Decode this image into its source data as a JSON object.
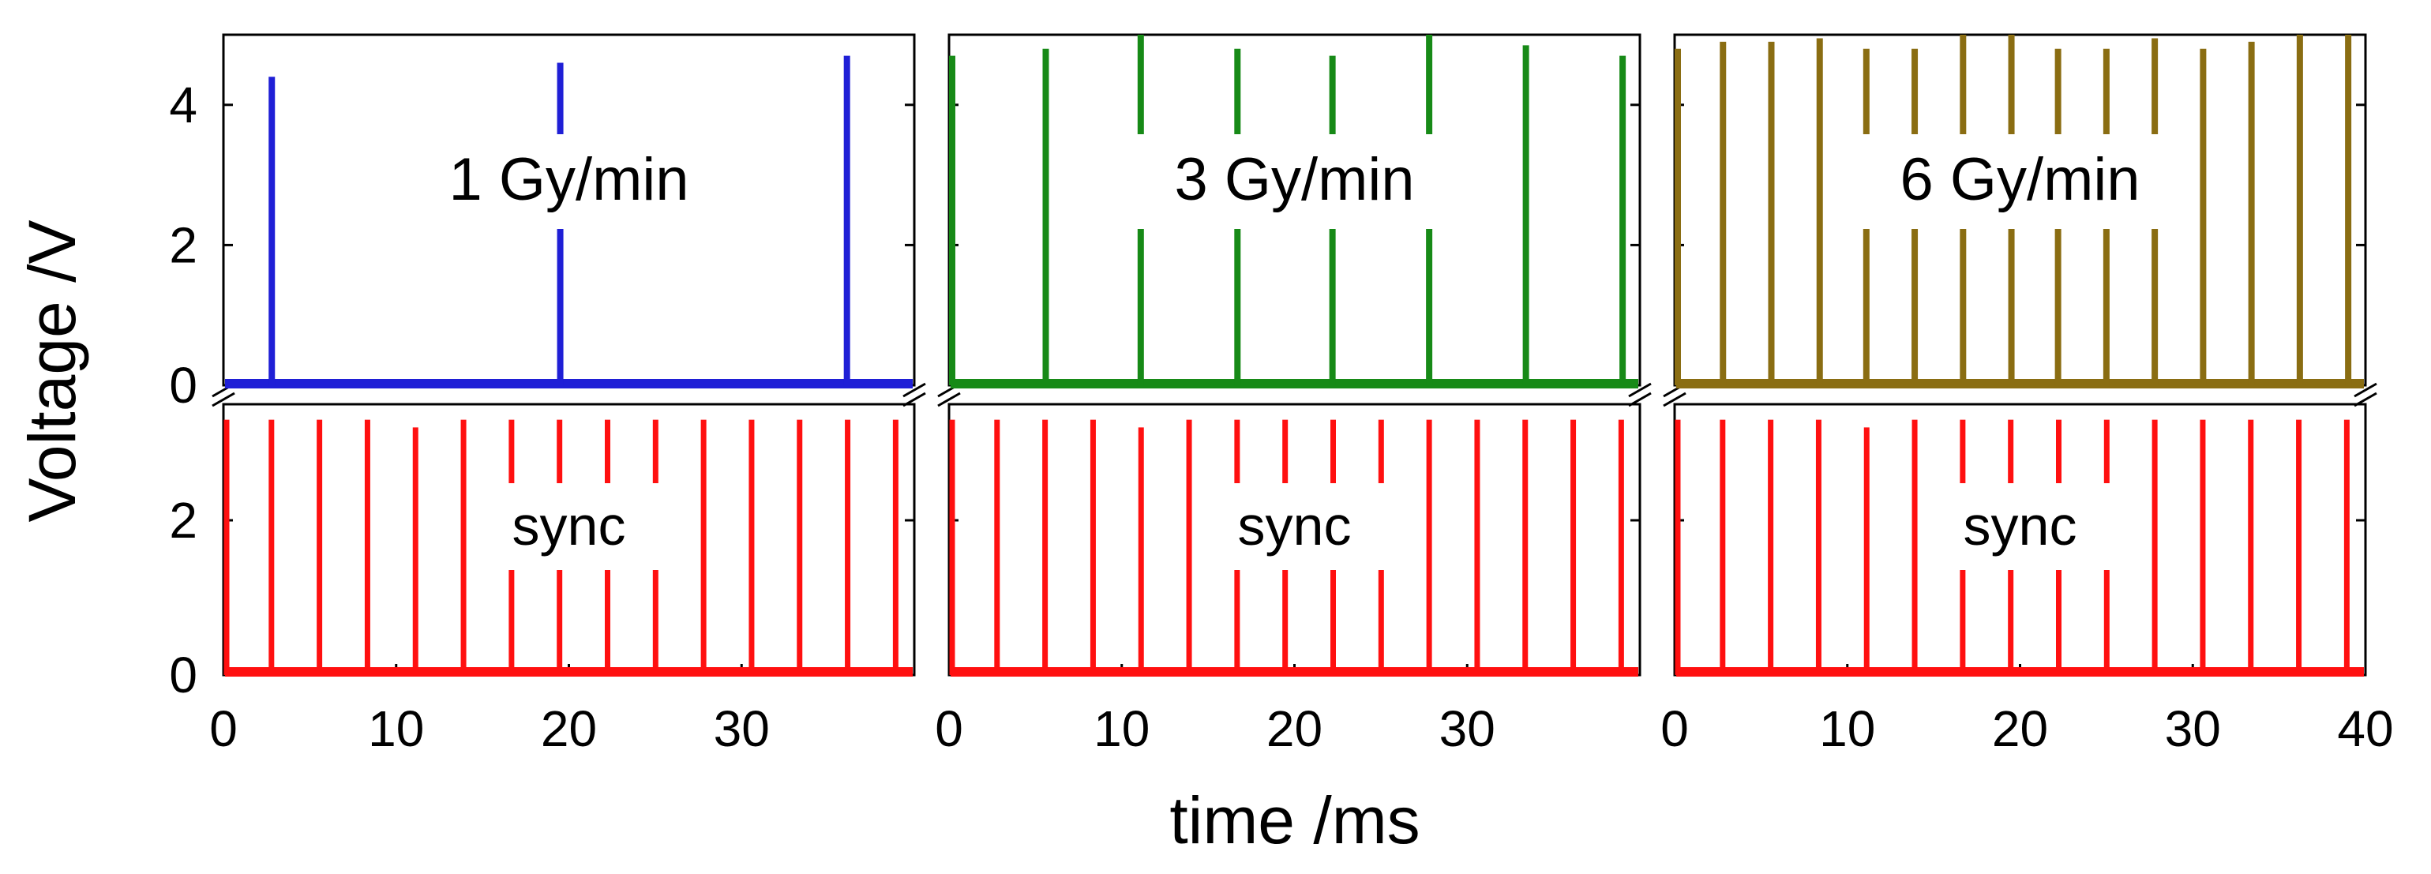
{
  "chart_data": {
    "type": "line",
    "ylabel": "Voltage /V",
    "xlabel": "time /ms",
    "xlim": [
      0,
      40
    ],
    "x_ticks": [
      "0",
      "10",
      "20",
      "30",
      "40"
    ],
    "x_ticks_first_two_panels": [
      "0",
      "10",
      "20",
      "30"
    ],
    "top_ylim": [
      0,
      5
    ],
    "top_y_ticks": [
      "0",
      "2",
      "4"
    ],
    "bottom_ylim": [
      0,
      3.5
    ],
    "bottom_y_ticks": [
      "0",
      "2"
    ],
    "axis_break": true,
    "panels": [
      {
        "label": "1 Gy/min",
        "color": "#1f1fd6",
        "pulses": [
          {
            "x": 2.8,
            "y": 4.4
          },
          {
            "x": 19.5,
            "y": 4.6
          },
          {
            "x": 36.1,
            "y": 4.7
          }
        ]
      },
      {
        "label": "3 Gy/min",
        "color": "#178a17",
        "pulses": [
          {
            "x": 0.0,
            "y": 4.7
          },
          {
            "x": 5.6,
            "y": 4.8
          },
          {
            "x": 11.1,
            "y": 5.0
          },
          {
            "x": 16.7,
            "y": 4.8
          },
          {
            "x": 22.2,
            "y": 4.7
          },
          {
            "x": 27.8,
            "y": 5.0
          },
          {
            "x": 33.4,
            "y": 4.85
          },
          {
            "x": 39.0,
            "y": 4.7
          }
        ]
      },
      {
        "label": "6 Gy/min",
        "color": "#8a6d12",
        "pulses": [
          {
            "x": 0.0,
            "y": 4.8
          },
          {
            "x": 2.8,
            "y": 4.9
          },
          {
            "x": 5.6,
            "y": 4.9
          },
          {
            "x": 8.4,
            "y": 4.95
          },
          {
            "x": 11.1,
            "y": 4.8
          },
          {
            "x": 13.9,
            "y": 4.8
          },
          {
            "x": 16.7,
            "y": 5.0
          },
          {
            "x": 19.5,
            "y": 5.0
          },
          {
            "x": 22.2,
            "y": 4.8
          },
          {
            "x": 25.0,
            "y": 4.8
          },
          {
            "x": 27.8,
            "y": 4.95
          },
          {
            "x": 30.6,
            "y": 4.8
          },
          {
            "x": 33.4,
            "y": 4.9
          },
          {
            "x": 36.2,
            "y": 5.0
          },
          {
            "x": 39.0,
            "y": 5.0
          }
        ]
      }
    ],
    "sync": {
      "label": "sync",
      "color": "#ff1010",
      "pulses": [
        {
          "x": 0.0,
          "y": 3.3
        },
        {
          "x": 2.78,
          "y": 3.3
        },
        {
          "x": 5.56,
          "y": 3.3
        },
        {
          "x": 8.34,
          "y": 3.3
        },
        {
          "x": 11.12,
          "y": 3.2
        },
        {
          "x": 13.9,
          "y": 3.3
        },
        {
          "x": 16.68,
          "y": 3.3
        },
        {
          "x": 19.46,
          "y": 3.3
        },
        {
          "x": 22.24,
          "y": 3.3
        },
        {
          "x": 25.02,
          "y": 3.3
        },
        {
          "x": 27.8,
          "y": 3.3
        },
        {
          "x": 30.58,
          "y": 3.3
        },
        {
          "x": 33.36,
          "y": 3.3
        },
        {
          "x": 36.14,
          "y": 3.3
        },
        {
          "x": 38.92,
          "y": 3.3
        }
      ]
    }
  }
}
